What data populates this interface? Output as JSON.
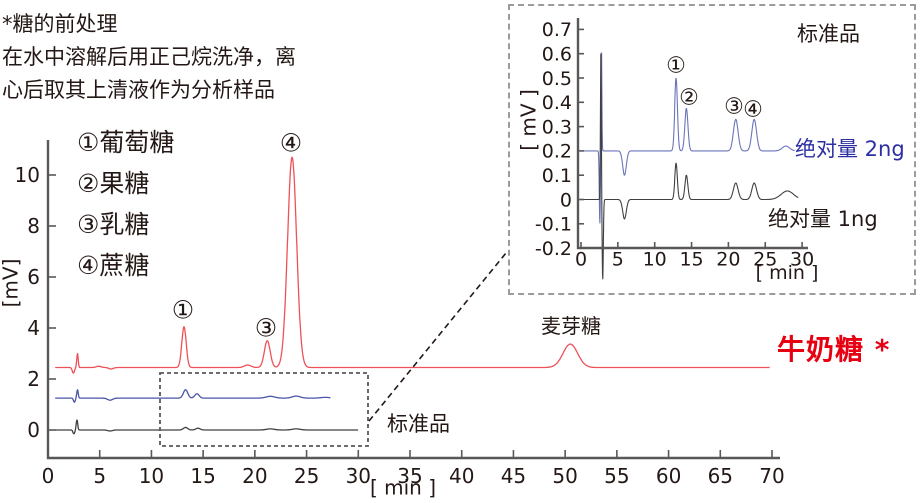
{
  "colors": {
    "trace_red": "#ee5157",
    "trace_blue_main": "#4a55a8",
    "trace_blue_inset": "#6b74bb",
    "trace_black": "#404040",
    "accent_red_text": "#e60012",
    "accent_blue_text": "#2b2fa3",
    "text": "#231815",
    "axis": "#595757",
    "zoom_box": "#595757"
  },
  "note": {
    "line1": "*糖的前处理",
    "line2": "在水中溶解后用正己烷洗净，离",
    "line3": "心后取其上清液作为分析样品"
  },
  "legend": {
    "item1": "①葡萄糖",
    "item2": "②果糖",
    "item3": "③乳糖",
    "item4": "④蔗糖"
  },
  "annotations": {
    "main": {
      "peak1": "①",
      "peak3": "③",
      "peak4": "④",
      "maltose": "麦芽糖",
      "standard": "标准品",
      "sample": "牛奶糖 *",
      "ylabel": "[mV]",
      "xlabel": "[ min ]"
    },
    "inset": {
      "peak1": "①",
      "peak2": "②",
      "peak3": "③",
      "peak4": "④",
      "standard": "标准品",
      "amount2ng": "绝对量 2ng",
      "amount1ng": "绝对量 1ng",
      "ylabel": "[ mV ]",
      "xlabel": "[ min ]"
    }
  },
  "chart_data": [
    {
      "id": "main",
      "type": "line",
      "title": "牛奶糖中糖类的HPLC色谱图（主图）",
      "xlabel": "[ min ]",
      "ylabel": "[mV]",
      "xlim": [
        0,
        70
      ],
      "ylim": [
        -1.1,
        11.4
      ],
      "grid": false,
      "xticks": [
        "0",
        "5",
        "10",
        "15",
        "20",
        "25",
        "30",
        "35",
        "40",
        "45",
        "50",
        "55",
        "60",
        "65",
        "70"
      ],
      "yticks": [
        "0",
        "2",
        "4",
        "6",
        "8",
        "10"
      ],
      "peak_labels": [
        {
          "mark": "①",
          "compound": "葡萄糖",
          "t_min": 13.1,
          "apex_mV": 4.0
        },
        {
          "mark": "③",
          "compound": "乳糖",
          "t_min": 21.2,
          "apex_mV": 3.5
        },
        {
          "mark": "④",
          "compound": "蔗糖",
          "t_min": 23.6,
          "apex_mV": 10.6
        },
        {
          "mark": "麦芽糖",
          "compound": "麦芽糖",
          "t_min": 50.5,
          "apex_mV": 3.4
        }
      ],
      "traces": [
        {
          "key": "sample-milk-candy",
          "name": "牛奶糖 *",
          "color": "trace_red",
          "baseline": 2.45,
          "t_start": 0.7,
          "t_end": 69.8,
          "peaks": [
            [
              2.45,
              -0.22,
              0.15
            ],
            [
              2.85,
              0.55,
              0.1
            ],
            [
              4.9,
              0.05,
              0.35
            ],
            [
              6.1,
              -0.06,
              0.3
            ],
            [
              13.15,
              1.6,
              0.3
            ],
            [
              19.3,
              0.1,
              0.45
            ],
            [
              21.2,
              1.05,
              0.4
            ],
            [
              23.6,
              8.25,
              0.62
            ],
            [
              50.5,
              0.92,
              1.0
            ]
          ]
        },
        {
          "key": "standard-2ng",
          "name": "标准品 2ng",
          "color": "trace_blue_main",
          "baseline": 1.25,
          "t_start": 0.7,
          "t_end": 27.3,
          "peaks": [
            [
              2.55,
              -0.16,
              0.12
            ],
            [
              2.85,
              0.33,
              0.1
            ],
            [
              6.0,
              -0.08,
              0.35
            ],
            [
              13.3,
              0.33,
              0.3
            ],
            [
              14.4,
              0.17,
              0.3
            ],
            [
              21.5,
              0.07,
              0.6
            ],
            [
              24.0,
              0.08,
              0.55
            ],
            [
              26.8,
              0.03,
              0.6
            ]
          ]
        },
        {
          "key": "standard-1ng",
          "name": "标准品 1ng",
          "color": "trace_black",
          "baseline": 0,
          "t_start": 0.7,
          "t_end": 30,
          "peaks": [
            [
              2.5,
              -0.15,
              0.12
            ],
            [
              2.8,
              0.4,
              0.1
            ],
            [
              6.0,
              -0.04,
              0.3
            ],
            [
              13.3,
              0.1,
              0.3
            ],
            [
              14.5,
              0.07,
              0.3
            ],
            [
              21.5,
              0.045,
              0.55
            ],
            [
              24.0,
              0.045,
              0.55
            ]
          ]
        }
      ]
    },
    {
      "id": "inset",
      "type": "line",
      "title": "标准品放大图",
      "xlabel": "[ min ]",
      "ylabel": "[ mV ]",
      "xlim": [
        0,
        30
      ],
      "ylim": [
        -0.2,
        0.75
      ],
      "grid": false,
      "xticks": [
        "0",
        "5",
        "10",
        "15",
        "20",
        "25",
        "30"
      ],
      "yticks": [
        "0.7",
        "0.6",
        "0.5",
        "0.4",
        "0.3",
        "0.2",
        "0.1",
        "0",
        "-0.1",
        "-0.2"
      ],
      "peak_labels": [
        {
          "mark": "①",
          "compound": "葡萄糖",
          "t_min": 12.9,
          "apex_mV": 0.5
        },
        {
          "mark": "②",
          "compound": "果糖",
          "t_min": 14.3,
          "apex_mV": 0.38
        },
        {
          "mark": "③",
          "compound": "乳糖",
          "t_min": 21.0,
          "apex_mV": 0.33
        },
        {
          "mark": "④",
          "compound": "蔗糖",
          "t_min": 23.5,
          "apex_mV": 0.33
        }
      ],
      "traces": [
        {
          "key": "inset-2ng",
          "name": "绝对量 2ng",
          "color": "trace_blue_inset",
          "baseline": 0.2,
          "t_start": 0.4,
          "t_end": 29,
          "peaks": [
            [
              2.55,
              -0.3,
              0.1
            ],
            [
              2.78,
              0.43,
              0.08
            ],
            [
              5.9,
              -0.1,
              0.35
            ],
            [
              12.9,
              0.3,
              0.26
            ],
            [
              14.3,
              0.175,
              0.3
            ],
            [
              21.0,
              0.13,
              0.45
            ],
            [
              23.5,
              0.13,
              0.45
            ],
            [
              27.8,
              0.02,
              0.7
            ]
          ]
        },
        {
          "key": "inset-1ng",
          "name": "绝对量 1ng",
          "color": "trace_black",
          "baseline": 0,
          "t_start": 0.4,
          "t_end": 29.5,
          "peaks": [
            [
              2.7,
              0.63,
              0.09
            ],
            [
              2.95,
              -0.33,
              0.11
            ],
            [
              5.9,
              -0.08,
              0.35
            ],
            [
              12.9,
              0.15,
              0.24
            ],
            [
              14.3,
              0.1,
              0.28
            ],
            [
              21.0,
              0.068,
              0.45
            ],
            [
              23.5,
              0.068,
              0.45
            ],
            [
              28.0,
              0.035,
              1.2
            ]
          ]
        }
      ]
    }
  ]
}
